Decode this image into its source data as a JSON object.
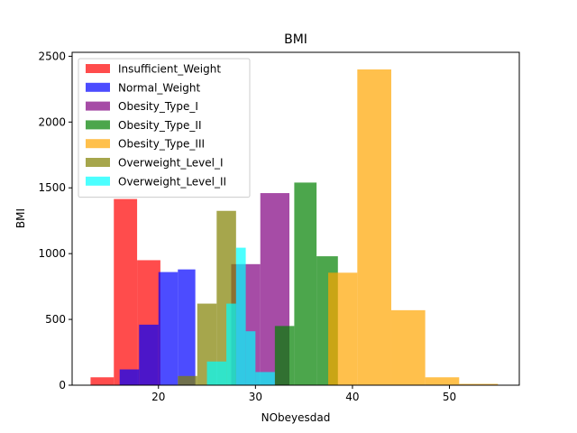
{
  "chart_data": {
    "type": "histogram",
    "title": "BMI",
    "xlabel": "NObeyesdad",
    "ylabel": "BMI",
    "xlim": [
      11.1,
      57.2
    ],
    "ylim": [
      0,
      2530
    ],
    "x_ticks": [
      20,
      30,
      40,
      50
    ],
    "y_ticks": [
      0,
      500,
      1000,
      1500,
      2000,
      2500
    ],
    "legend_position": "top-left",
    "grid": false,
    "series": [
      {
        "name": "Insufficient_Weight",
        "color": "#ff0000",
        "bins": [
          [
            13.0,
            15.4,
            60
          ],
          [
            15.4,
            17.8,
            1415
          ],
          [
            17.8,
            20.2,
            950
          ],
          [
            20.2,
            22.6,
            0
          ]
        ]
      },
      {
        "name": "Normal_Weight",
        "color": "#0000ff",
        "bins": [
          [
            16.0,
            18.0,
            120
          ],
          [
            18.0,
            20.0,
            460
          ],
          [
            20.0,
            22.0,
            860
          ],
          [
            22.0,
            23.8,
            880
          ]
        ]
      },
      {
        "name": "Obesity_Type_I",
        "color": "#800080",
        "bins": [
          [
            27.5,
            30.5,
            920
          ],
          [
            30.5,
            33.5,
            1460
          ],
          [
            33.5,
            35.5,
            0
          ]
        ]
      },
      {
        "name": "Obesity_Type_II",
        "color": "#008000",
        "bins": [
          [
            32.0,
            34.0,
            450
          ],
          [
            34.0,
            36.3,
            1540
          ],
          [
            36.3,
            38.5,
            980
          ]
        ]
      },
      {
        "name": "Obesity_Type_III",
        "color": "#ffa500",
        "bins": [
          [
            37.5,
            40.5,
            855
          ],
          [
            40.5,
            44.0,
            2400
          ],
          [
            44.0,
            47.5,
            570
          ],
          [
            47.5,
            51.0,
            60
          ],
          [
            51.0,
            55.0,
            10
          ]
        ]
      },
      {
        "name": "Overweight_Level_I",
        "color": "#808000",
        "bins": [
          [
            22.0,
            24.0,
            70
          ],
          [
            24.0,
            26.0,
            620
          ],
          [
            26.0,
            28.0,
            1325
          ],
          [
            28.0,
            30.5,
            0
          ]
        ]
      },
      {
        "name": "Overweight_Level_II",
        "color": "#00ffff",
        "bins": [
          [
            25.0,
            27.0,
            180
          ],
          [
            27.0,
            28.0,
            620
          ],
          [
            28.0,
            29.0,
            1045
          ],
          [
            29.0,
            30.0,
            410
          ],
          [
            30.0,
            32.0,
            100
          ]
        ]
      }
    ]
  }
}
